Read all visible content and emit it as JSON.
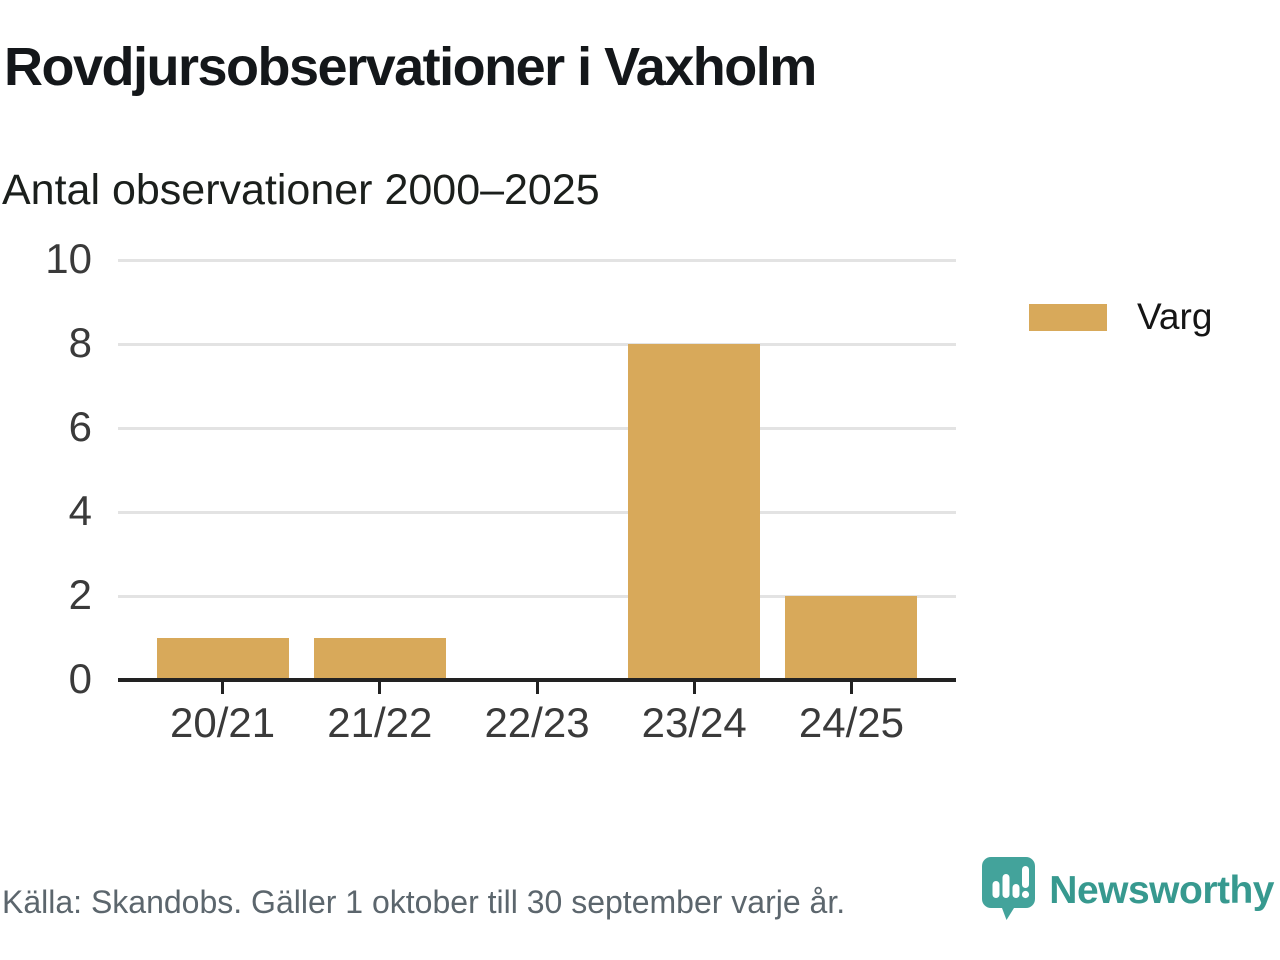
{
  "header": {
    "title": "Rovdjursobservationer i Vaxholm",
    "subtitle": "Antal observationer 2000–2025"
  },
  "legend": {
    "label": "Varg"
  },
  "footer": {
    "source": "Källa: Skandobs. Gäller 1 oktober till 30 september varje år.",
    "brand": "Newsworthy"
  },
  "colors": {
    "bar": "#D8A95A",
    "grid": "#E3E3E3",
    "axis": "#222222",
    "brand_teal_text": "#37998F",
    "brand_teal_bubble": "#43A39B",
    "muted_text": "#5C666D"
  },
  "chart_data": {
    "type": "bar",
    "title": "Rovdjursobservationer i Vaxholm",
    "subtitle": "Antal observationer 2000–2025",
    "categories": [
      "20/21",
      "21/22",
      "22/23",
      "23/24",
      "24/25"
    ],
    "series": [
      {
        "name": "Varg",
        "values": [
          1,
          1,
          0,
          8,
          2
        ],
        "color": "#D8A95A"
      }
    ],
    "xlabel": "",
    "ylabel": "",
    "ylim": [
      0,
      10
    ],
    "yticks": [
      0,
      2,
      4,
      6,
      8,
      10
    ],
    "grid": "horizontal",
    "legend_position": "right"
  }
}
